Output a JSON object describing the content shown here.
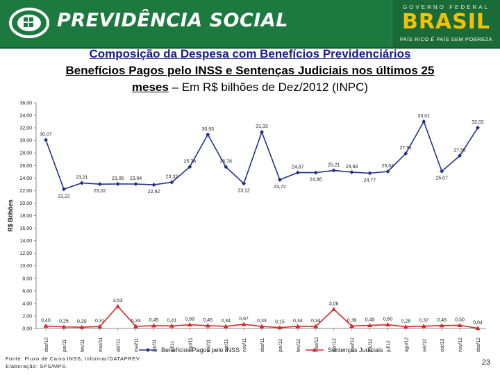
{
  "banner": {
    "title": "PREVIDÊNCIA SOCIAL",
    "gov_label": "GOVERNO FEDERAL",
    "country": "BRASIL",
    "slogan": "PAÍS RICO É PAÍS SEM POBREZA",
    "background_color": "#1c7a3f",
    "brasil_color": "#f2c200"
  },
  "heading": {
    "line1": "Composição da Despesa com Benefícios Previdenciários",
    "line2": "Benefícios Pagos pelo INSS e Sentenças Judiciais nos últimos 25",
    "line3_bold": "meses",
    "line3_rest": " – Em R$ bilhões de Dez/2012 (INPC)"
  },
  "footer": {
    "source": "Fonte: Fluxo de Caixa INSS; Informar/DATAPREV.",
    "prepared": "Elaboração: SPS/MPS."
  },
  "page_number": "23",
  "chart_data": {
    "type": "line",
    "ylabel": "R$ Bilhões",
    "ylim": [
      0,
      36
    ],
    "ytick_step": 2,
    "grid": false,
    "legend_position": "bottom",
    "categories": [
      "dez/10",
      "jan/11",
      "fev/11",
      "mar/11",
      "abr/11",
      "mai/11",
      "jun/11",
      "jul/11",
      "ago/11",
      "set/11",
      "out/11",
      "nov/11",
      "dez/11",
      "jan/12",
      "fev/12",
      "mar/12",
      "abr/12",
      "mai/12",
      "jun/12",
      "jul/12",
      "ago/12",
      "set/12",
      "out/12",
      "nov/12",
      "dez/12"
    ],
    "series": [
      {
        "name": "Benefícios Pagos pelo INSS",
        "color": "#1f2f8a",
        "marker": "diamond",
        "values": [
          30.07,
          22.22,
          23.21,
          23.02,
          23.05,
          23.04,
          22.92,
          23.32,
          25.78,
          30.93,
          25.78,
          23.12,
          31.33,
          23.72,
          24.87,
          24.86,
          25.21,
          24.93,
          24.77,
          25.04,
          27.91,
          33.01,
          25.07,
          27.55,
          32.02
        ],
        "labels": [
          "30,07",
          "22,22",
          "23,21",
          "23,02",
          "23,05",
          "23,04",
          "22,92",
          "23,32",
          "25,78",
          "30,93",
          "25,78",
          "23,12",
          "31,33",
          "23,72",
          "24,87",
          "24,86",
          "25,21",
          "24,93",
          "24,77",
          "25,04",
          "27,91",
          "33,01",
          "25,07",
          "27,55",
          "32,02"
        ]
      },
      {
        "name": "Sentenças Judiciais",
        "color": "#d62828",
        "marker": "triangle",
        "values": [
          0.4,
          0.25,
          0.2,
          0.31,
          3.53,
          0.33,
          0.45,
          0.41,
          0.59,
          0.45,
          0.34,
          0.67,
          0.33,
          0.15,
          0.34,
          0.34,
          3.06,
          0.39,
          0.49,
          0.6,
          0.28,
          0.37,
          0.46,
          0.5,
          0.04
        ],
        "labels": [
          "0,40",
          "0,25",
          "0,20",
          "0,31",
          "3,53",
          "0,33",
          "0,45",
          "0,41",
          "0,59",
          "0,45",
          "0,34",
          "0,67",
          "0,33",
          "0,15",
          "0,34",
          "0,34",
          "3,06",
          "0,39",
          "0,49",
          "0,60",
          "0,28",
          "0,37",
          "0,46",
          "0,50",
          "0,04"
        ]
      }
    ]
  }
}
